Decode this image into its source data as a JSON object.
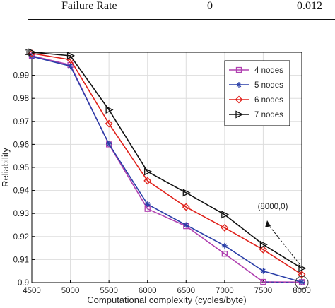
{
  "table_fragment": {
    "row_label": "Failure Rate",
    "values": [
      "0",
      "0.012"
    ]
  },
  "chart_data": {
    "type": "line",
    "xlabel": "Computational complexity (cycles/byte)",
    "ylabel": "Reliability",
    "xlim": [
      4500,
      8000
    ],
    "ylim": [
      0.9,
      1.0
    ],
    "xticks": [
      "4500",
      "5000",
      "5500",
      "6000",
      "6500",
      "7000",
      "7500",
      "8000"
    ],
    "yticks": [
      "0.9",
      "0.91",
      "0.92",
      "0.93",
      "0.94",
      "0.95",
      "0.96",
      "0.97",
      "0.98",
      "0.99",
      "1"
    ],
    "grid": true,
    "legend_position": "top-right",
    "x": [
      4500,
      5000,
      5500,
      6000,
      6500,
      7000,
      7500,
      8000
    ],
    "series": [
      {
        "name": "4 nodes",
        "color": "#b040b0",
        "marker": "square",
        "values": [
          0.9985,
          0.9945,
          0.96,
          0.932,
          0.9245,
          0.9125,
          0.9003,
          0.9002
        ]
      },
      {
        "name": "5 nodes",
        "color": "#2a3fa8",
        "marker": "star",
        "values": [
          0.9982,
          0.994,
          0.9602,
          0.934,
          0.925,
          0.916,
          0.905,
          0.9002
        ]
      },
      {
        "name": "6 nodes",
        "color": "#e0201a",
        "marker": "diamond",
        "values": [
          0.9995,
          0.9968,
          0.969,
          0.9442,
          0.9328,
          0.9238,
          0.9143,
          0.9035
        ]
      },
      {
        "name": "7 nodes",
        "color": "#111111",
        "marker": "triangle-right",
        "values": [
          1.0,
          0.9985,
          0.975,
          0.9482,
          0.939,
          0.9295,
          0.9165,
          0.9062
        ]
      }
    ],
    "annotation": {
      "text": "(8000,0)",
      "x": 8000,
      "y": 0.9
    }
  }
}
